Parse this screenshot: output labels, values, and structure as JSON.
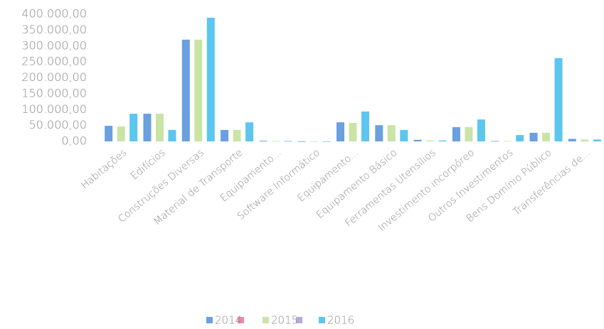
{
  "chart_data": {
    "type": "bar",
    "categories": [
      "Habitações",
      "Edifícios",
      "Construções Diversas",
      "Material de Transporte",
      "Equipamento...",
      "Software Informático",
      "Equipamento...",
      "Equipamento Básico",
      "Ferramentas Utensílios",
      "Investimento incorpóreo",
      "Outros Investimentos",
      "Bens Domínio Público",
      "Transferências de..."
    ],
    "series": [
      {
        "name": "2014",
        "color": "#6a9fe0",
        "values": [
          49000,
          87000,
          320000,
          36000,
          2000,
          500,
          60000,
          51000,
          5000,
          45000,
          1000,
          27000,
          8000
        ]
      },
      {
        "name": "2015",
        "color": "#c9e4a5",
        "values": [
          47000,
          87000,
          320000,
          36000,
          1000,
          500,
          58000,
          51000,
          3000,
          45000,
          1000,
          27000,
          6000
        ]
      },
      {
        "name": "2016",
        "color": "#5cc6ee",
        "values": [
          87000,
          36000,
          389000,
          60000,
          1000,
          500,
          94000,
          36000,
          3000,
          69000,
          20000,
          262000,
          6000
        ]
      }
    ],
    "ylim": [
      0,
      400000
    ],
    "yticks": [
      {
        "value": 0,
        "label": "0,00"
      },
      {
        "value": 50000,
        "label": "50.000,00"
      },
      {
        "value": 100000,
        "label": "100.000,00"
      },
      {
        "value": 150000,
        "label": "150.000,00"
      },
      {
        "value": 200000,
        "label": "200.000,00"
      },
      {
        "value": 250000,
        "label": "250.000,00"
      },
      {
        "value": 300000,
        "label": "300.000,00"
      },
      {
        "value": 350000,
        "label": "350.000,00"
      },
      {
        "value": 400000,
        "label": "400.000,00"
      }
    ],
    "grid": false
  }
}
